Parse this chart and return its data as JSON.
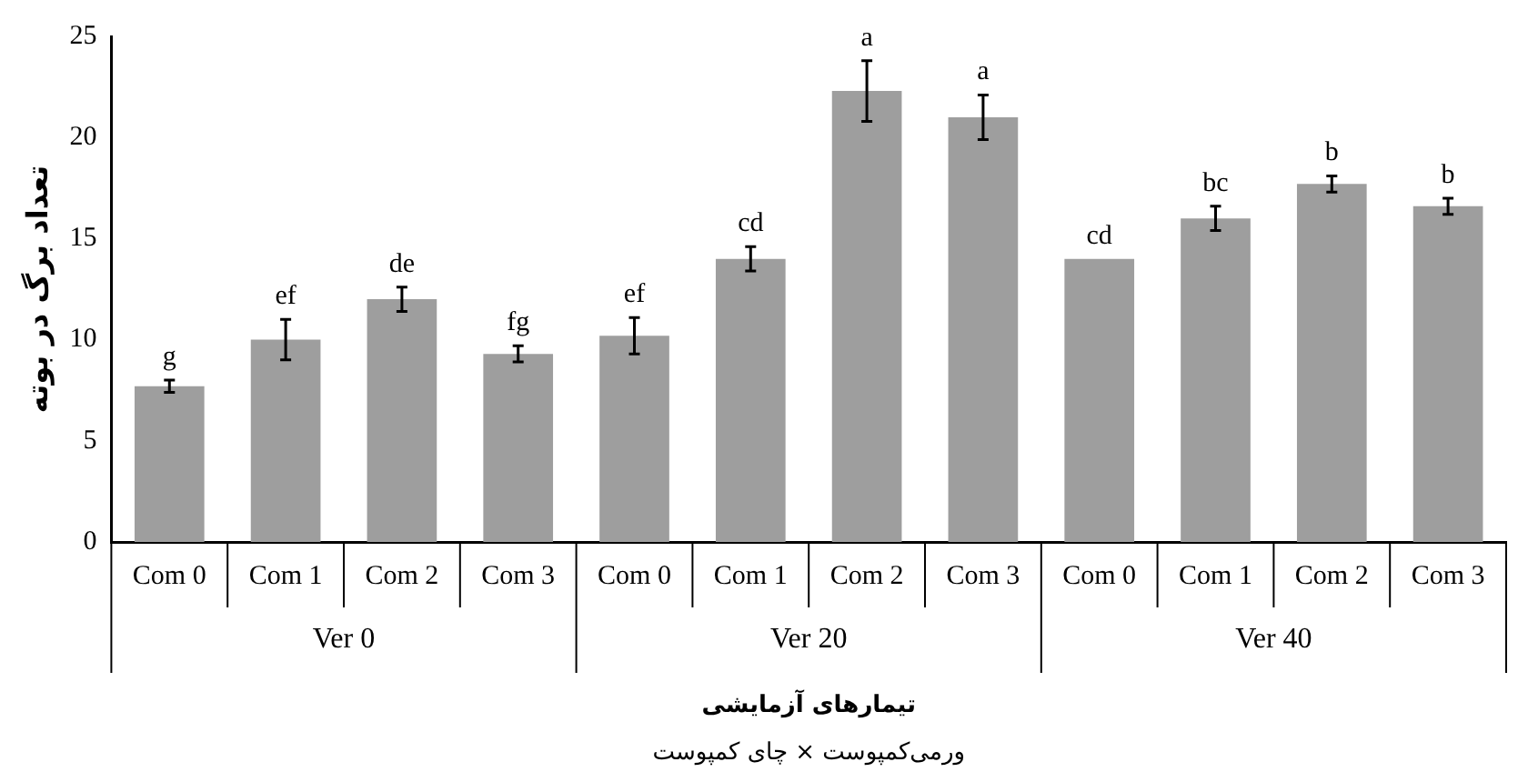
{
  "chart_data": {
    "type": "bar",
    "ylabel": "تعداد برگ در بوته",
    "xlabel": "تیمارهای آزمایشی",
    "categories": [
      "Com 0",
      "Com 1",
      "Com 2",
      "Com 3",
      "Com 0",
      "Com 1",
      "Com 2",
      "Com 3",
      "Com 0",
      "Com 1",
      "Com 2",
      "Com 3"
    ],
    "values": [
      7.7,
      10.0,
      12.0,
      9.3,
      10.2,
      14.0,
      22.3,
      21.0,
      14.0,
      16.0,
      17.7,
      16.6
    ],
    "errors": [
      0.3,
      1.0,
      0.6,
      0.4,
      0.9,
      0.6,
      1.5,
      1.1,
      null,
      0.6,
      0.4,
      0.4
    ],
    "value_labels": [
      "g",
      "ef",
      "de",
      "fg",
      "ef",
      "cd",
      "a",
      "a",
      "cd",
      "bc",
      "b",
      "b"
    ],
    "color": "#9e9e9e",
    "ylim": [
      0,
      25
    ],
    "yticks": [
      0,
      5,
      10,
      15,
      20,
      25
    ],
    "grid": false,
    "legend": false,
    "annotations": [
      "Ver 0",
      "Ver 20",
      "Ver 40",
      "ورمی‌کمپوست × چای کمپوست"
    ]
  }
}
